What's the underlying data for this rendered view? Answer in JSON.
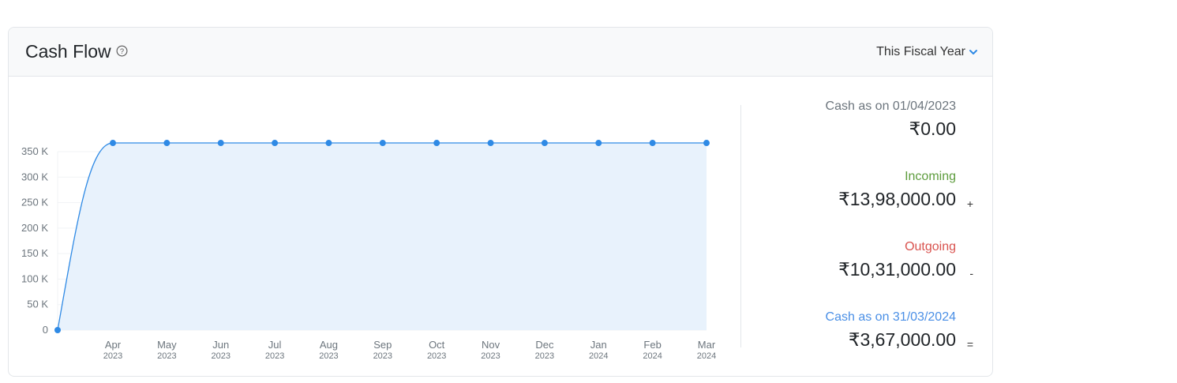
{
  "header": {
    "title": "Cash Flow",
    "period_label": "This Fiscal Year"
  },
  "summary": {
    "opening_label": "Cash as on 01/04/2023",
    "opening_amount": "₹0.00",
    "incoming_label": "Incoming",
    "incoming_amount": "₹13,98,000.00",
    "incoming_op": "+",
    "outgoing_label": "Outgoing",
    "outgoing_amount": "₹10,31,000.00",
    "outgoing_op": "-",
    "closing_label": "Cash as on 31/03/2024",
    "closing_amount": "₹3,67,000.00",
    "closing_op": "="
  },
  "colors": {
    "accent": "#2f8ae5",
    "area_fill": "#e8f2fc",
    "incoming": "#5d9c3d",
    "outgoing": "#d9534f",
    "closing": "#4a8fe6",
    "muted": "#6c757d"
  },
  "chart_data": {
    "type": "area",
    "title": "Cash Flow",
    "x": [
      "",
      "Apr",
      "May",
      "Jun",
      "Jul",
      "Aug",
      "Sep",
      "Oct",
      "Nov",
      "Dec",
      "Jan",
      "Feb",
      "Mar"
    ],
    "x_years": [
      "",
      "2023",
      "2023",
      "2023",
      "2023",
      "2023",
      "2023",
      "2023",
      "2023",
      "2023",
      "2024",
      "2024",
      "2024"
    ],
    "values": [
      0,
      367000,
      367000,
      367000,
      367000,
      367000,
      367000,
      367000,
      367000,
      367000,
      367000,
      367000,
      367000
    ],
    "y_ticks": [
      0,
      50000,
      100000,
      150000,
      200000,
      250000,
      300000,
      350000
    ],
    "y_tick_labels": [
      "0",
      "50 K",
      "100 K",
      "150 K",
      "200 K",
      "250 K",
      "300 K",
      "350 K"
    ],
    "ylim": [
      0,
      350000
    ],
    "xlabel": "",
    "ylabel": "",
    "grid": true
  }
}
